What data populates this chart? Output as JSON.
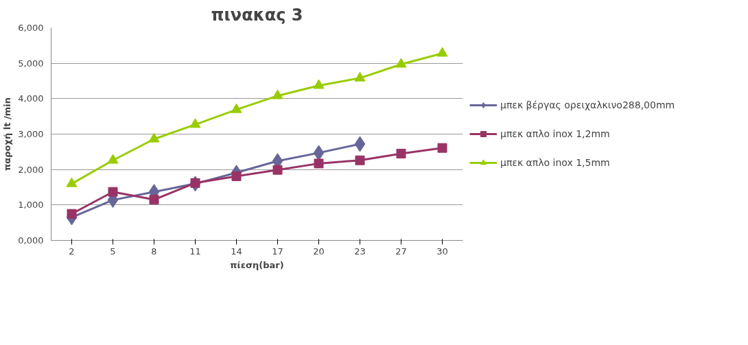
{
  "chart_data": {
    "type": "line",
    "title": "πινακας 3",
    "xlabel": "πίεση(bar)",
    "ylabel": "παροχή lt /min",
    "categories": [
      "2",
      "5",
      "8",
      "11",
      "14",
      "17",
      "20",
      "23",
      "27",
      "30"
    ],
    "series": [
      {
        "name": "μπεκ βέργας ορειχαλκινο288,00mm",
        "color": "#666699",
        "marker": "diamond",
        "values": [
          0.65,
          1.14,
          1.37,
          1.6,
          1.91,
          2.24,
          2.47,
          2.72,
          null,
          null
        ]
      },
      {
        "name": "μπεκ απλο inox 1,2mm",
        "color": "#993366",
        "marker": "square",
        "values": [
          0.75,
          1.37,
          1.15,
          1.62,
          1.81,
          1.99,
          2.17,
          2.26,
          2.45,
          2.61
        ]
      },
      {
        "name": "μπεκ απλο inox 1,5mm",
        "color": "#99cc00",
        "marker": "triangle",
        "values": [
          1.6,
          2.26,
          2.86,
          3.27,
          3.69,
          4.08,
          4.37,
          4.58,
          4.97,
          5.28
        ]
      }
    ],
    "ylim": [
      0,
      6
    ],
    "yticks": [
      {
        "value": 0,
        "label": "0,000"
      },
      {
        "value": 1,
        "label": "1,000"
      },
      {
        "value": 2,
        "label": "2,000"
      },
      {
        "value": 3,
        "label": "3,000"
      },
      {
        "value": 4,
        "label": "4,000"
      },
      {
        "value": 5,
        "label": "5,000"
      },
      {
        "value": 6,
        "label": "6,000"
      }
    ],
    "grid": "y",
    "legend": "right",
    "line_style": "solid"
  }
}
